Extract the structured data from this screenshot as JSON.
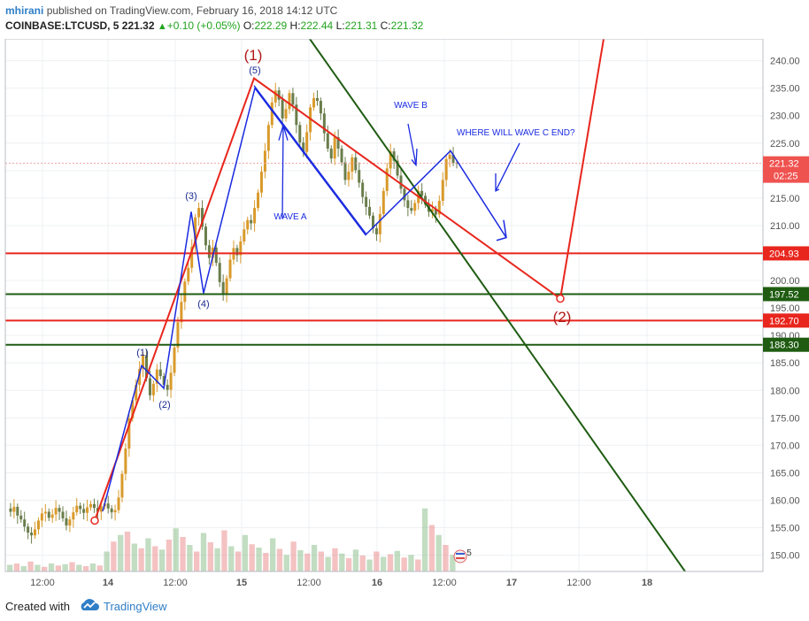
{
  "header": {
    "user": "mhirani",
    "published_text": "published on TradingView.com, February 16, 2018 14:12 UTC",
    "symbol": "COINBASE:LTCUSD, 5",
    "last": "221.32",
    "change_arrow": "▲",
    "change": "+0.10 (+0.05%)",
    "o_label": "O:",
    "o_value": "222.29",
    "h_label": "H:",
    "h_value": "222.44",
    "l_label": "L:",
    "l_value": "221.31",
    "c_label": "C:",
    "c_value": "221.32"
  },
  "footer": {
    "created_with": "Created with",
    "brand": "TradingView"
  },
  "colors": {
    "red": "#e8261d",
    "green": "#1f5c12",
    "blue": "#1a2ae0",
    "price_line": "#f0a0a0"
  },
  "chart_data": {
    "type": "candlestick",
    "title": "",
    "xlabel": "",
    "ylabel": "",
    "ylim": [
      148,
      243
    ],
    "y_ticks": [
      150,
      155,
      160,
      165,
      170,
      175,
      180,
      185,
      190,
      195,
      200,
      205,
      210,
      215,
      220,
      225,
      230,
      235,
      240
    ],
    "x_ticks": [
      "12:00",
      "14",
      "12:00",
      "15",
      "12:00",
      "16",
      "12:00",
      "17",
      "12:00",
      "18"
    ],
    "price_badges": [
      {
        "value": "221.32",
        "sub": "02:25",
        "color": "#ef5350"
      },
      {
        "value": "204.93",
        "color": "#e8261d"
      },
      {
        "value": "197.52",
        "color": "#1f5c12"
      },
      {
        "value": "192.70",
        "color": "#e8261d"
      },
      {
        "value": "188.30",
        "color": "#1f5c12"
      }
    ],
    "horizontal_levels": [
      204.93,
      197.52,
      192.7,
      188.3
    ],
    "price_path": [
      158.5,
      157.9,
      158.8,
      157.2,
      156.5,
      155.2,
      154.1,
      153.6,
      154.7,
      156.3,
      157.6,
      157.9,
      156.8,
      157.4,
      158.6,
      157.9,
      156.7,
      155.4,
      156.5,
      157.8,
      159.0,
      158.4,
      157.7,
      158.7,
      159.3,
      158.6,
      157.9,
      158.9,
      159.4,
      158.5,
      157.8,
      158.2,
      160.5,
      164.8,
      169.4,
      174.9,
      178.2,
      181.0,
      183.9,
      186.4,
      182.2,
      179.1,
      181.2,
      183.8,
      182.6,
      181.0,
      180.1,
      183.2,
      187.8,
      192.4,
      196.1,
      199.8,
      202.3,
      206.1,
      211.5,
      213.2,
      209.8,
      206.4,
      204.1,
      206.0,
      203.2,
      199.7,
      197.5,
      200.4,
      203.8,
      205.9,
      204.6,
      207.1,
      209.3,
      211.0,
      210.4,
      213.2,
      216.0,
      219.8,
      223.6,
      228.3,
      232.4,
      234.6,
      232.9,
      229.5,
      231.2,
      234.1,
      232.0,
      228.3,
      225.1,
      223.4,
      227.0,
      231.5,
      233.2,
      232.7,
      230.4,
      226.8,
      224.0,
      222.2,
      226.1,
      224.0,
      221.5,
      218.3,
      219.8,
      222.4,
      220.1,
      217.8,
      215.2,
      213.4,
      211.8,
      209.5,
      208.4,
      212.1,
      216.3,
      220.4,
      223.5,
      221.8,
      219.1,
      216.7,
      214.6,
      213.2,
      212.7,
      214.1,
      216.3,
      215.4,
      213.8,
      212.5,
      213.0,
      212.0,
      214.5,
      218.3,
      222.1,
      222.9,
      221.4,
      221.3
    ],
    "volume_path": [
      0.1,
      0.12,
      0.08,
      0.15,
      0.1,
      0.07,
      0.12,
      0.09,
      0.11,
      0.14,
      0.1,
      0.08,
      0.12,
      0.09,
      0.3,
      0.45,
      0.55,
      0.6,
      0.42,
      0.35,
      0.5,
      0.38,
      0.33,
      0.48,
      0.65,
      0.52,
      0.4,
      0.3,
      0.58,
      0.44,
      0.35,
      0.62,
      0.38,
      0.3,
      0.55,
      0.41,
      0.36,
      0.28,
      0.5,
      0.34,
      0.25,
      0.45,
      0.32,
      0.27,
      0.4,
      0.3,
      0.22,
      0.35,
      0.27,
      0.2,
      0.33,
      0.24,
      0.18,
      0.3,
      0.22,
      0.26,
      0.31,
      0.21,
      0.25,
      0.18,
      0.95,
      0.7,
      0.55,
      0.4,
      0.25
    ],
    "annotations": {
      "major_1": "(1)",
      "major_2": "(2)",
      "wave_1": "(1)",
      "wave_2": "(2)",
      "wave_3": "(3)",
      "wave_4": "(4)",
      "wave_5": "(5)",
      "wave_a": "WAVE A",
      "wave_b": "WAVE B",
      "wave_c_question": "WHERE WILL WAVE C END?",
      "flag_count": "5"
    },
    "legend": "none",
    "grid": true
  }
}
